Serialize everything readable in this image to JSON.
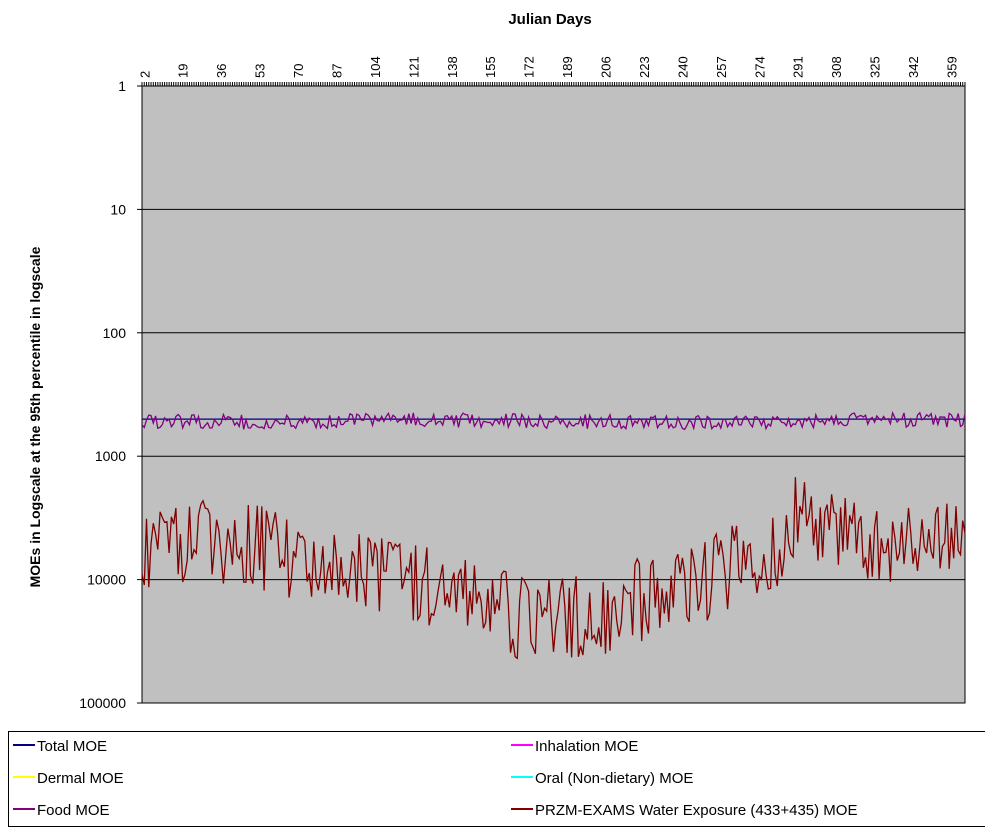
{
  "chart_data": {
    "type": "line",
    "title": "Julian Days",
    "xlabel": "Julian Days",
    "ylabel": "MOEs in Logscale at the 95th percentile in logscale",
    "y_scale": "log",
    "y_reversed": true,
    "ylim": [
      1,
      100000
    ],
    "xlim": [
      1,
      365
    ],
    "x_ticks": [
      "2",
      "19",
      "36",
      "53",
      "70",
      "87",
      "104",
      "121",
      "138",
      "155",
      "172",
      "189",
      "206",
      "223",
      "240",
      "257",
      "274",
      "291",
      "308",
      "325",
      "342",
      "359"
    ],
    "y_ticks": [
      "1",
      "10",
      "100",
      "1000",
      "10000",
      "100000"
    ],
    "grid": "horizontal",
    "background": "#c0c0c0",
    "legend_position": "bottom",
    "series": [
      {
        "name": "Total MOE",
        "color": "#000080",
        "profile": "flat",
        "keypoints": [
          [
            1,
            500
          ],
          [
            365,
            500
          ]
        ]
      },
      {
        "name": "Inhalation MOE",
        "color": "#ff00ff",
        "profile": "flat",
        "keypoints": [
          [
            1,
            1
          ],
          [
            365,
            1
          ]
        ]
      },
      {
        "name": "Dermal MOE",
        "color": "#ffff00",
        "profile": "flat",
        "keypoints": [
          [
            1,
            1
          ],
          [
            365,
            1
          ]
        ]
      },
      {
        "name": "Oral (Non-dietary) MOE",
        "color": "#00ffff",
        "profile": "flat",
        "keypoints": [
          [
            1,
            1
          ],
          [
            365,
            1
          ]
        ]
      },
      {
        "name": "Food MOE",
        "color": "#800080",
        "profile": "noisy",
        "noise": 0.06,
        "keypoints": [
          [
            1,
            520
          ],
          [
            60,
            530
          ],
          [
            120,
            510
          ],
          [
            180,
            520
          ],
          [
            240,
            540
          ],
          [
            300,
            510
          ],
          [
            365,
            510
          ]
        ]
      },
      {
        "name": "PRZM-EXAMS Water Exposure (433+435) MOE",
        "color": "#800000",
        "profile": "noisy",
        "noise": 0.35,
        "keypoints": [
          [
            1,
            5800
          ],
          [
            30,
            5000
          ],
          [
            45,
            5200
          ],
          [
            55,
            5600
          ],
          [
            65,
            6800
          ],
          [
            80,
            6600
          ],
          [
            95,
            7600
          ],
          [
            110,
            9800
          ],
          [
            125,
            11500
          ],
          [
            140,
            15000
          ],
          [
            155,
            17000
          ],
          [
            170,
            21000
          ],
          [
            185,
            21000
          ],
          [
            200,
            20000
          ],
          [
            215,
            17000
          ],
          [
            225,
            13000
          ],
          [
            240,
            13000
          ],
          [
            255,
            9000
          ],
          [
            270,
            6800
          ],
          [
            282,
            5500
          ],
          [
            290,
            3200
          ],
          [
            300,
            3600
          ],
          [
            315,
            4600
          ],
          [
            330,
            5000
          ],
          [
            345,
            5300
          ],
          [
            365,
            5300
          ]
        ]
      }
    ]
  },
  "legend": [
    {
      "label": "Total MOE",
      "color": "#000080"
    },
    {
      "label": "Inhalation MOE",
      "color": "#ff00ff"
    },
    {
      "label": "Dermal MOE",
      "color": "#ffff00"
    },
    {
      "label": "Oral (Non-dietary) MOE",
      "color": "#00ffff"
    },
    {
      "label": "Food MOE",
      "color": "#800080"
    },
    {
      "label": "PRZM-EXAMS Water Exposure (433+435) MOE",
      "color": "#800000"
    }
  ]
}
